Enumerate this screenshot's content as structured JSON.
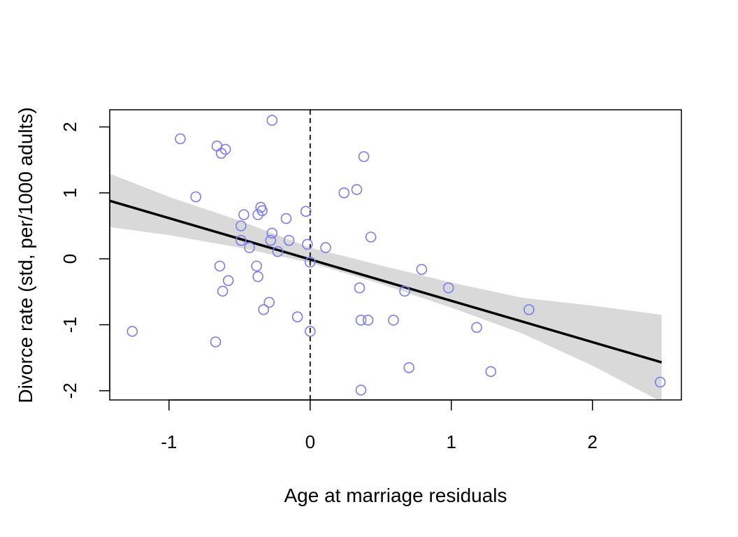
{
  "chart_data": {
    "type": "scatter",
    "title": "",
    "xlabel": "Age at marriage residuals",
    "ylabel": "Divorce rate (std, per/1000 adults)",
    "xlim": [
      -1.42,
      2.63
    ],
    "ylim": [
      -2.14,
      2.26
    ],
    "xticks": [
      -1,
      0,
      1,
      2
    ],
    "xtick_labels": [
      "-1",
      "0",
      "1",
      "2"
    ],
    "yticks": [
      -2,
      -1,
      0,
      1,
      2
    ],
    "ytick_labels": [
      "-2",
      "-1",
      "0",
      "1",
      "2"
    ],
    "grid": false,
    "colors": {
      "points": "#7b7bf0",
      "line": "#000000",
      "band": "#d9d9d9",
      "reference": "#000000"
    },
    "points": [
      [
        -1.26,
        -1.1
      ],
      [
        -0.92,
        1.82
      ],
      [
        -0.81,
        0.94
      ],
      [
        -0.67,
        -1.26
      ],
      [
        -0.66,
        1.71
      ],
      [
        -0.64,
        -0.11
      ],
      [
        -0.63,
        1.6
      ],
      [
        -0.62,
        -0.49
      ],
      [
        -0.6,
        1.66
      ],
      [
        -0.58,
        -0.33
      ],
      [
        -0.49,
        0.5
      ],
      [
        -0.49,
        0.28
      ],
      [
        -0.47,
        0.67
      ],
      [
        -0.43,
        0.17
      ],
      [
        -0.38,
        -0.11
      ],
      [
        -0.37,
        -0.27
      ],
      [
        -0.37,
        0.67
      ],
      [
        -0.35,
        0.78
      ],
      [
        -0.34,
        0.73
      ],
      [
        -0.33,
        -0.77
      ],
      [
        -0.29,
        -0.66
      ],
      [
        -0.28,
        0.28
      ],
      [
        -0.27,
        2.1
      ],
      [
        -0.27,
        0.39
      ],
      [
        -0.23,
        0.11
      ],
      [
        -0.17,
        0.61
      ],
      [
        -0.15,
        0.28
      ],
      [
        -0.09,
        -0.88
      ],
      [
        -0.03,
        0.72
      ],
      [
        -0.02,
        0.22
      ],
      [
        0.0,
        -1.1
      ],
      [
        0.0,
        -0.05
      ],
      [
        0.11,
        0.17
      ],
      [
        0.24,
        1.0
      ],
      [
        0.33,
        1.05
      ],
      [
        0.35,
        -0.44
      ],
      [
        0.36,
        -0.93
      ],
      [
        0.36,
        -1.99
      ],
      [
        0.38,
        1.55
      ],
      [
        0.41,
        -0.93
      ],
      [
        0.43,
        0.33
      ],
      [
        0.59,
        -0.93
      ],
      [
        0.67,
        -0.49
      ],
      [
        0.7,
        -1.65
      ],
      [
        0.79,
        -0.16
      ],
      [
        0.98,
        -0.44
      ],
      [
        1.18,
        -1.04
      ],
      [
        1.28,
        -1.71
      ],
      [
        1.55,
        -0.77
      ],
      [
        2.48,
        -1.87
      ]
    ],
    "regression_line": [
      [
        -1.42,
        0.88
      ],
      [
        2.49,
        -1.57
      ]
    ],
    "interval_band": {
      "x": [
        -1.42,
        -1.0,
        -0.5,
        0.0,
        0.5,
        1.0,
        1.5,
        2.0,
        2.49
      ],
      "lower": [
        0.48,
        0.36,
        0.17,
        -0.06,
        -0.38,
        -0.74,
        -1.13,
        -1.62,
        -2.17
      ],
      "upper": [
        1.29,
        0.94,
        0.58,
        0.17,
        -0.1,
        -0.36,
        -0.59,
        -0.71,
        -0.85
      ]
    },
    "reference_line_x": 0
  }
}
